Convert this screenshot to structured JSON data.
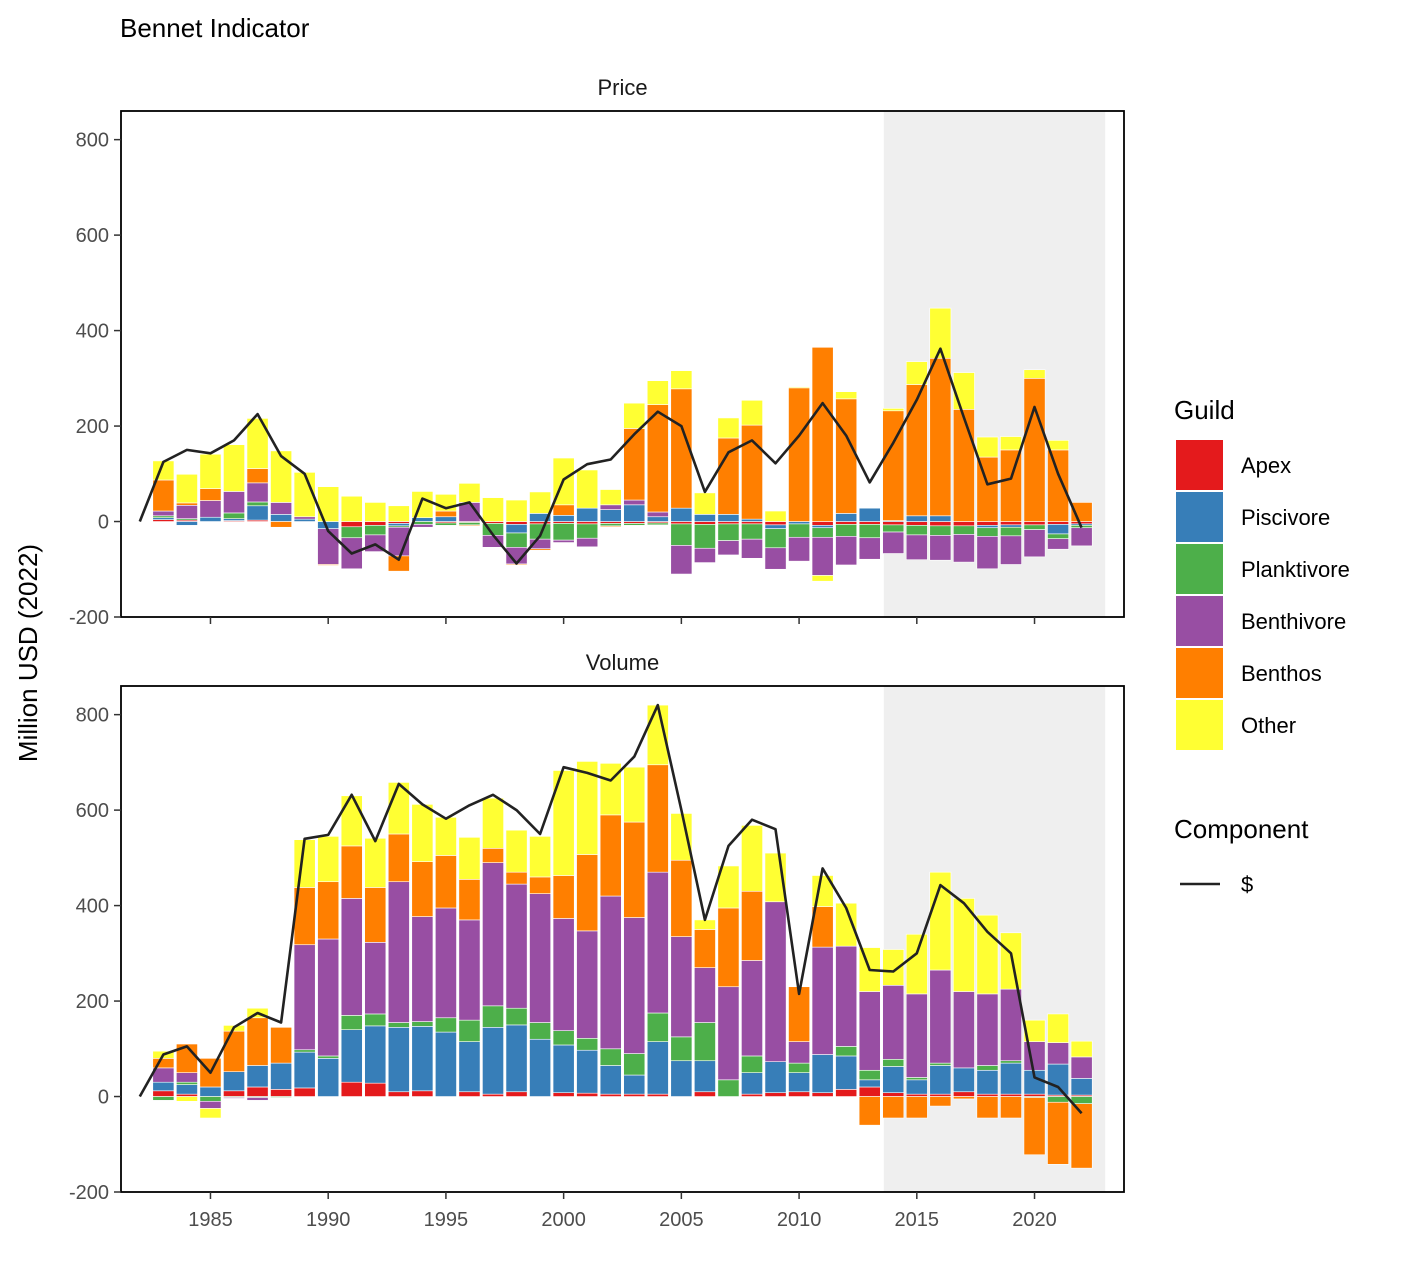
{
  "chart_data": {
    "type": "bar",
    "title": "Bennet Indicator",
    "ylabel": "Million USD (2022)",
    "ylim": [
      -200,
      860
    ],
    "yticks": [
      -200,
      0,
      200,
      400,
      600,
      800
    ],
    "xlim": [
      1981.2,
      2023.8
    ],
    "xticks": [
      1985,
      1990,
      1995,
      2000,
      2005,
      2010,
      2015,
      2020
    ],
    "shaded_region": {
      "from": 2013.6,
      "to": 2023
    },
    "colors": {
      "Apex": "#e41a1c",
      "Piscivore": "#377eb8",
      "Planktivore": "#4daf4a",
      "Benthivore": "#984ea3",
      "Benthos": "#ff7f00",
      "Other": "#ffff33",
      "line": "#222222",
      "shade": "#efefef"
    },
    "guilds": [
      "Apex",
      "Piscivore",
      "Planktivore",
      "Benthivore",
      "Benthos",
      "Other"
    ],
    "legend": {
      "guild_title": "Guild",
      "guild_entries": [
        "Apex",
        "Piscivore",
        "Planktivore",
        "Benthivore",
        "Benthos",
        "Other"
      ],
      "component_title": "Component",
      "component_entries": [
        "$"
      ],
      "placement": "right"
    },
    "panels": [
      {
        "name": "Price",
        "years": [
          1983,
          1984,
          1985,
          1986,
          1987,
          1988,
          1989,
          1990,
          1991,
          1992,
          1993,
          1994,
          1995,
          1996,
          1997,
          1998,
          1999,
          2000,
          2001,
          2002,
          2003,
          2004,
          2005,
          2006,
          2007,
          2008,
          2009,
          2010,
          2011,
          2012,
          2013,
          2014,
          2015,
          2016,
          2017,
          2018,
          2019,
          2020,
          2021,
          2022
        ],
        "series": [
          {
            "name": "Apex",
            "values": [
              4,
              3,
              0,
              2,
              3,
              0,
              0,
              0,
              -11,
              -8,
              -4,
              0,
              -3,
              -2,
              -4,
              -6,
              -5,
              -4,
              -5,
              -4,
              -4,
              -3,
              -5,
              -6,
              -5,
              -5,
              -7,
              0,
              -8,
              -6,
              -6,
              -7,
              -8,
              -9,
              -9,
              -8,
              -7,
              -7,
              -6,
              -5
            ]
          },
          {
            "name": "Piscivore",
            "values": [
              4,
              -8,
              9,
              4,
              30,
              15,
              5,
              -15,
              0,
              0,
              -5,
              8,
              10,
              0,
              0,
              -18,
              17,
              13,
              28,
              25,
              35,
              10,
              28,
              15,
              15,
              5,
              -8,
              -5,
              -5,
              17,
              28,
              2,
              12,
              12,
              0,
              -5,
              -5,
              0,
              -20,
              -3
            ]
          },
          {
            "name": "Planktivore",
            "values": [
              4,
              3,
              0,
              12,
              8,
              0,
              0,
              0,
              -23,
              -20,
              -3,
              -6,
              -5,
              -5,
              -25,
              -30,
              -32,
              -35,
              -30,
              -5,
              -4,
              -4,
              -45,
              -50,
              -35,
              -32,
              -40,
              -28,
              -20,
              -25,
              -28,
              -15,
              -20,
              -20,
              -18,
              -18,
              -18,
              -10,
              -10,
              -5
            ]
          },
          {
            "name": "Benthivore",
            "values": [
              10,
              28,
              35,
              45,
              40,
              25,
              5,
              -75,
              -65,
              -35,
              -60,
              -6,
              0,
              40,
              -25,
              -35,
              -20,
              -5,
              -18,
              10,
              10,
              10,
              -60,
              -30,
              -30,
              -40,
              -45,
              -50,
              -80,
              -60,
              -45,
              -45,
              -52,
              -52,
              -58,
              -68,
              -60,
              -57,
              -22,
              -38
            ]
          },
          {
            "name": "Benthos",
            "values": [
              65,
              5,
              25,
              0,
              30,
              -12,
              0,
              -2,
              0,
              0,
              -32,
              0,
              12,
              -2,
              0,
              -2,
              -3,
              22,
              0,
              -2,
              150,
              225,
              250,
              0,
              160,
              197,
              0,
              280,
              365,
              240,
              0,
              230,
              275,
              330,
              235,
              135,
              150,
              300,
              150,
              40
            ]
          },
          {
            "name": "Other",
            "values": [
              40,
              60,
              72,
              98,
              105,
              108,
              93,
              73,
              53,
              40,
              33,
              55,
              35,
              40,
              50,
              45,
              45,
              98,
              80,
              32,
              53,
              50,
              38,
              45,
              42,
              52,
              22,
              2,
              -12,
              15,
              0,
              5,
              48,
              105,
              77,
              42,
              28,
              18,
              20,
              0
            ]
          }
        ],
        "line": {
          "name": "$",
          "x": [
            1982,
            1983,
            1984,
            1985,
            1986,
            1987,
            1988,
            1989,
            1990,
            1991,
            1992,
            1993,
            1994,
            1995,
            1996,
            1997,
            1998,
            1999,
            2000,
            2001,
            2002,
            2003,
            2004,
            2005,
            2006,
            2007,
            2008,
            2009,
            2010,
            2011,
            2012,
            2013,
            2014,
            2015,
            2016,
            2017,
            2018,
            2019,
            2020,
            2021,
            2022
          ],
          "values": [
            0,
            125,
            150,
            143,
            170,
            225,
            137,
            100,
            -20,
            -67,
            -48,
            -80,
            48,
            28,
            40,
            -28,
            -88,
            -30,
            88,
            120,
            130,
            183,
            230,
            200,
            62,
            145,
            170,
            122,
            180,
            248,
            180,
            82,
            165,
            255,
            362,
            218,
            78,
            90,
            240,
            100,
            -13
          ]
        }
      },
      {
        "name": "Volume",
        "years": [
          1983,
          1984,
          1985,
          1986,
          1987,
          1988,
          1989,
          1990,
          1991,
          1992,
          1993,
          1994,
          1995,
          1996,
          1997,
          1998,
          1999,
          2000,
          2001,
          2002,
          2003,
          2004,
          2005,
          2006,
          2007,
          2008,
          2009,
          2010,
          2011,
          2012,
          2013,
          2014,
          2015,
          2016,
          2017,
          2018,
          2019,
          2020,
          2021,
          2022
        ],
        "series": [
          {
            "name": "Apex",
            "values": [
              12,
              5,
              0,
              12,
              20,
              15,
              18,
              0,
              30,
              28,
              10,
              12,
              0,
              10,
              5,
              10,
              0,
              8,
              7,
              5,
              5,
              5,
              0,
              10,
              0,
              5,
              8,
              10,
              8,
              15,
              20,
              8,
              5,
              5,
              10,
              5,
              5,
              5,
              3,
              3
            ]
          },
          {
            "name": "Piscivore",
            "values": [
              18,
              20,
              20,
              40,
              45,
              55,
              75,
              80,
              110,
              120,
              135,
              135,
              135,
              105,
              140,
              140,
              120,
              100,
              90,
              60,
              40,
              110,
              75,
              65,
              0,
              45,
              65,
              40,
              80,
              70,
              15,
              55,
              30,
              60,
              50,
              50,
              65,
              50,
              65,
              35
            ]
          },
          {
            "name": "Planktivore",
            "values": [
              -8,
              5,
              -10,
              -2,
              -2,
              -2,
              5,
              5,
              30,
              25,
              10,
              10,
              30,
              45,
              45,
              35,
              35,
              30,
              25,
              35,
              45,
              60,
              50,
              80,
              35,
              35,
              0,
              20,
              0,
              20,
              20,
              15,
              5,
              5,
              0,
              10,
              5,
              -2,
              -12,
              -15
            ]
          },
          {
            "name": "Benthivore",
            "values": [
              30,
              20,
              -15,
              -2,
              -6,
              0,
              220,
              245,
              245,
              150,
              295,
              220,
              230,
              210,
              300,
              260,
              270,
              235,
              225,
              320,
              285,
              295,
              210,
              115,
              195,
              200,
              335,
              45,
              225,
              210,
              165,
              155,
              175,
              195,
              160,
              150,
              150,
              60,
              45,
              45
            ]
          },
          {
            "name": "Benthos",
            "values": [
              20,
              60,
              60,
              85,
              100,
              75,
              120,
              120,
              110,
              115,
              100,
              115,
              110,
              85,
              30,
              25,
              35,
              90,
              160,
              170,
              200,
              225,
              160,
              80,
              165,
              145,
              0,
              115,
              85,
              0,
              -60,
              -45,
              -45,
              -20,
              -5,
              -45,
              -45,
              -120,
              -130,
              -135
            ]
          },
          {
            "name": "Other",
            "values": [
              15,
              -10,
              -20,
              12,
              20,
              0,
              100,
              95,
              105,
              103,
              108,
              120,
              80,
              88,
              105,
              88,
              85,
              220,
              195,
              108,
              115,
              125,
              98,
              20,
              88,
              138,
              102,
              0,
              65,
              90,
              92,
              75,
              125,
              205,
              195,
              165,
              118,
              45,
              60,
              33
            ]
          }
        ],
        "line": {
          "name": "$",
          "x": [
            1982,
            1983,
            1984,
            1985,
            1986,
            1987,
            1988,
            1989,
            1990,
            1991,
            1992,
            1993,
            1994,
            1995,
            1996,
            1997,
            1998,
            1999,
            2000,
            2001,
            2002,
            2003,
            2004,
            2005,
            2006,
            2007,
            2008,
            2009,
            2010,
            2011,
            2012,
            2013,
            2014,
            2015,
            2016,
            2017,
            2018,
            2019,
            2020,
            2021,
            2022
          ],
          "values": [
            0,
            88,
            105,
            50,
            145,
            175,
            155,
            540,
            548,
            632,
            535,
            655,
            612,
            582,
            610,
            632,
            600,
            550,
            690,
            678,
            662,
            712,
            820,
            600,
            370,
            525,
            580,
            560,
            215,
            478,
            395,
            265,
            262,
            300,
            443,
            405,
            345,
            300,
            40,
            20,
            -35
          ]
        }
      }
    ]
  }
}
